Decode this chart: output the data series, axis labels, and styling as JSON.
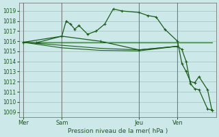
{
  "title": "Pression niveau de la mer( hPa )",
  "background_color": "#cce8e8",
  "line_color": "#1a5c1a",
  "grid_color": "#b0c8c8",
  "ylim": [
    1008.5,
    1019.8
  ],
  "yticks": [
    1009,
    1010,
    1011,
    1012,
    1013,
    1014,
    1015,
    1016,
    1017,
    1018,
    1019
  ],
  "day_labels": [
    "Mer",
    "Sam",
    "Jeu",
    "Ven"
  ],
  "day_positions": [
    0,
    9,
    27,
    36
  ],
  "xlim": [
    -1,
    45
  ],
  "flat_lines": [
    {
      "x": [
        0,
        45
      ],
      "y": [
        1015.9,
        1015.9
      ]
    },
    {
      "x": [
        0,
        36
      ],
      "y": [
        1015.15,
        1015.15
      ]
    },
    {
      "x": [
        0,
        36
      ],
      "y": [
        1015.5,
        1015.5
      ]
    }
  ],
  "series_main": {
    "x": [
      0,
      3,
      9,
      10,
      11,
      12,
      13,
      15,
      17,
      19,
      21,
      23,
      27,
      29,
      31,
      33,
      36,
      37,
      38,
      39,
      40,
      41,
      43,
      44
    ],
    "y": [
      1015.9,
      1015.85,
      1016.5,
      1018.0,
      1017.7,
      1017.2,
      1017.55,
      1016.7,
      1017.0,
      1017.7,
      1019.2,
      1019.0,
      1018.85,
      1018.55,
      1018.4,
      1017.2,
      1016.0,
      1013.8,
      1013.0,
      1012.0,
      1011.9,
      1012.5,
      1011.2,
      1009.2
    ]
  },
  "series_diverge": {
    "x": [
      0,
      9,
      18,
      27,
      36,
      37,
      38,
      39,
      40,
      41,
      43,
      44
    ],
    "y": [
      1015.9,
      1016.5,
      1016.0,
      1015.15,
      1015.5,
      1015.2,
      1014.0,
      1011.8,
      1011.3,
      1011.2,
      1009.3,
      1009.2
    ]
  }
}
